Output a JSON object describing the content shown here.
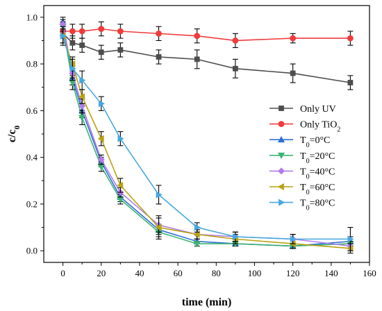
{
  "chart_data": {
    "type": "line",
    "xlabel": "time (min)",
    "ylabel": "c/c",
    "ylabel_sub": "0",
    "xlim": [
      -10,
      160
    ],
    "ylim": [
      -0.05,
      1.05
    ],
    "xticks": [
      0,
      20,
      40,
      60,
      80,
      100,
      120,
      140,
      160
    ],
    "yticks": [
      0.0,
      0.2,
      0.4,
      0.6,
      0.8,
      1.0
    ],
    "ytick_labels": [
      "0.0",
      "0.2",
      "0.4",
      "0.6",
      "0.8",
      "1.0"
    ],
    "grid": false,
    "legend_position": "right",
    "series": [
      {
        "name": "Only UV",
        "marker": "square",
        "color": "#4d4d4d",
        "x": [
          0,
          5,
          10,
          20,
          30,
          50,
          70,
          90,
          120,
          150
        ],
        "y": [
          0.93,
          0.89,
          0.88,
          0.85,
          0.86,
          0.83,
          0.82,
          0.78,
          0.76,
          0.72
        ],
        "err": [
          0.04,
          0.03,
          0.03,
          0.03,
          0.03,
          0.03,
          0.04,
          0.04,
          0.04,
          0.03
        ]
      },
      {
        "name": "Only TiO",
        "name_sub": "2",
        "marker": "circle",
        "color": "#ef3b3b",
        "x": [
          0,
          5,
          10,
          20,
          30,
          50,
          70,
          90,
          120,
          150
        ],
        "y": [
          0.94,
          0.94,
          0.94,
          0.95,
          0.94,
          0.93,
          0.92,
          0.9,
          0.91,
          0.91
        ],
        "err": [
          0.03,
          0.03,
          0.03,
          0.03,
          0.03,
          0.03,
          0.03,
          0.03,
          0.02,
          0.03
        ]
      },
      {
        "name": "T",
        "name_sub": "0",
        "name_tail": "=0°C",
        "marker": "triangle-up",
        "color": "#2e6fd6",
        "x": [
          0,
          5,
          10,
          20,
          30,
          50,
          70,
          90,
          120,
          150
        ],
        "y": [
          0.98,
          0.74,
          0.6,
          0.38,
          0.23,
          0.09,
          0.04,
          0.03,
          0.02,
          0.04
        ],
        "err": [
          0.02,
          0.03,
          0.03,
          0.02,
          0.02,
          0.02,
          0.01,
          0.01,
          0.01,
          0.02
        ]
      },
      {
        "name": "T",
        "name_sub": "0",
        "name_tail": "=20°C",
        "marker": "triangle-down",
        "color": "#3cb371",
        "x": [
          0,
          5,
          10,
          20,
          30,
          50,
          70,
          90,
          120,
          150
        ],
        "y": [
          0.96,
          0.72,
          0.57,
          0.36,
          0.22,
          0.08,
          0.03,
          0.03,
          0.02,
          0.03
        ],
        "err": [
          0.02,
          0.03,
          0.03,
          0.02,
          0.02,
          0.02,
          0.01,
          0.01,
          0.01,
          0.02
        ]
      },
      {
        "name": "T",
        "name_sub": "0",
        "name_tail": "=40°C",
        "marker": "diamond",
        "color": "#b07ce8",
        "x": [
          0,
          5,
          10,
          20,
          30,
          50,
          70,
          90,
          120,
          150
        ],
        "y": [
          0.97,
          0.76,
          0.62,
          0.39,
          0.25,
          0.11,
          0.07,
          0.06,
          0.05,
          0.02
        ],
        "err": [
          0.02,
          0.03,
          0.03,
          0.02,
          0.02,
          0.03,
          0.02,
          0.02,
          0.02,
          0.02
        ]
      },
      {
        "name": "T",
        "name_sub": "0",
        "name_tail": "=60°C",
        "marker": "triangle-left",
        "color": "#b8a210",
        "x": [
          0,
          5,
          10,
          20,
          30,
          50,
          70,
          90,
          120,
          150
        ],
        "y": [
          0.92,
          0.8,
          0.66,
          0.48,
          0.28,
          0.1,
          0.07,
          0.05,
          0.03,
          0.01
        ],
        "err": [
          0.03,
          0.03,
          0.03,
          0.03,
          0.03,
          0.05,
          0.02,
          0.02,
          0.02,
          0.02
        ]
      },
      {
        "name": "T",
        "name_sub": "0",
        "name_tail": "=80°C",
        "marker": "triangle-right",
        "color": "#46a8e0",
        "x": [
          0,
          5,
          10,
          20,
          30,
          50,
          70,
          90,
          120,
          150
        ],
        "y": [
          0.92,
          0.78,
          0.73,
          0.63,
          0.48,
          0.24,
          0.1,
          0.06,
          0.05,
          0.05
        ],
        "err": [
          0.04,
          0.04,
          0.04,
          0.03,
          0.03,
          0.04,
          0.02,
          0.02,
          0.02,
          0.05
        ]
      }
    ]
  }
}
